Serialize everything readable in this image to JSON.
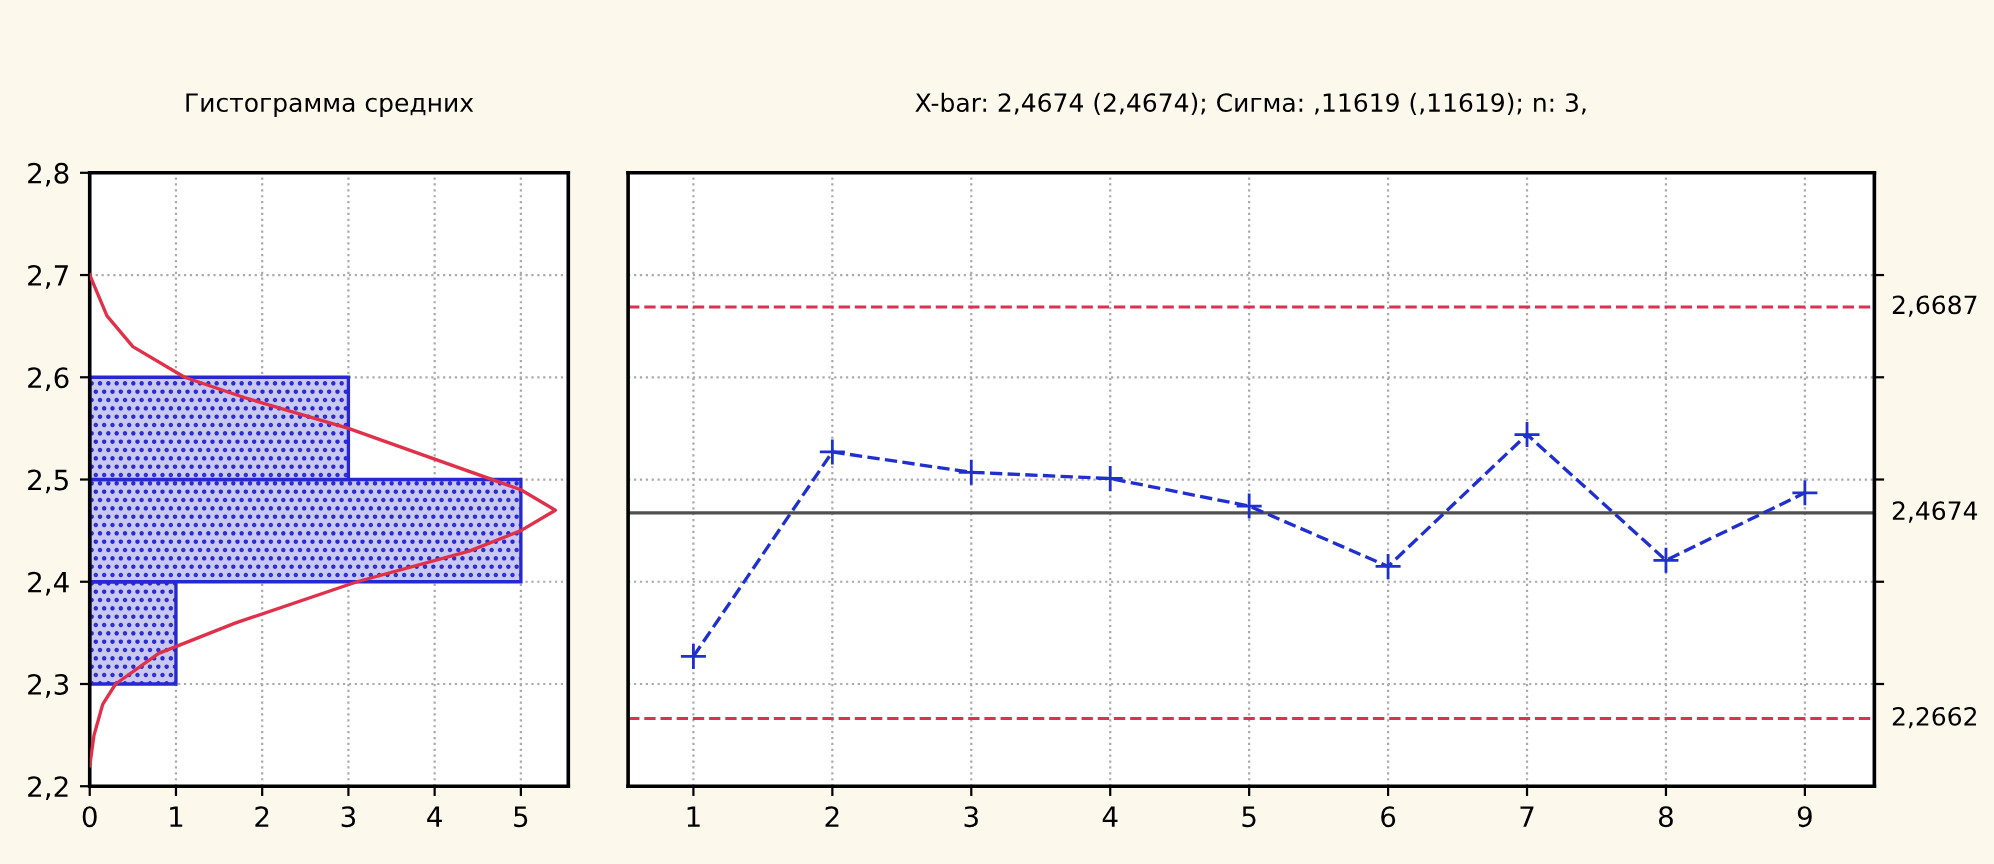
{
  "chart_data": [
    {
      "type": "histogram",
      "title": "Гистограмма средних",
      "orientation": "horizontal",
      "bins": [
        2.3,
        2.4,
        2.5,
        2.6
      ],
      "values": [
        1,
        5,
        3
      ],
      "color": "#2828d0",
      "series": [
        {
          "type": "line",
          "color": "#e0304a",
          "x": [
            2.22,
            2.25,
            2.28,
            2.3,
            2.33,
            2.36,
            2.4,
            2.43,
            2.45,
            2.47,
            2.49,
            2.52,
            2.55,
            2.58,
            2.6,
            2.63,
            2.66,
            2.7
          ],
          "values": [
            0,
            0.05,
            0.15,
            0.3,
            0.8,
            1.7,
            3.1,
            4.4,
            5,
            5.4,
            5,
            4,
            3,
            1.8,
            1.1,
            0.5,
            0.2,
            0
          ]
        }
      ],
      "xlim": [
        0,
        5.55
      ],
      "xticks": [
        0,
        1,
        2,
        3,
        4,
        5
      ],
      "ylim": [
        2.2,
        2.8
      ],
      "yticks": [
        {
          "value": 2.2,
          "label": "2,2"
        },
        {
          "value": 2.3,
          "label": "2,3"
        },
        {
          "value": 2.4,
          "label": "2,4"
        },
        {
          "value": 2.5,
          "label": "2,5"
        },
        {
          "value": 2.6,
          "label": "2,6"
        },
        {
          "value": 2.7,
          "label": "2,7"
        },
        {
          "value": 2.8,
          "label": "2,8"
        }
      ],
      "grid": true
    },
    {
      "type": "line",
      "title": "X-bar: 2,4674 (2,4674); Сигма: ,11619 (,11619); n: 3,",
      "x": [
        1,
        2,
        3,
        4,
        5,
        6,
        7,
        8,
        9
      ],
      "series": [
        {
          "color": "#2030d0",
          "values": [
            2.327,
            2.527,
            2.507,
            2.501,
            2.474,
            2.415,
            2.544,
            2.421,
            2.487
          ]
        }
      ],
      "marker": "cross",
      "line_style": "dashed",
      "xlim": [
        0.53,
        9.5
      ],
      "xticks": [
        1,
        2,
        3,
        4,
        5,
        6,
        7,
        8,
        9
      ],
      "ylim": [
        2.2,
        2.8
      ],
      "yticks": [
        {
          "value": 2.3,
          "label": null
        },
        {
          "value": 2.4,
          "label": null
        },
        {
          "value": 2.5,
          "label": null
        },
        {
          "value": 2.6,
          "label": null
        },
        {
          "value": 2.7,
          "label": null
        }
      ],
      "tick_labels": "x",
      "grid": true,
      "ref_lines": [
        {
          "axis": "y",
          "value": 2.6687,
          "label": "2,6687",
          "color": "#e03050",
          "line_style": "dashed"
        },
        {
          "axis": "y",
          "value": 2.4674,
          "label": "2,4674",
          "color": "#505050",
          "line_style": "solid"
        },
        {
          "axis": "y",
          "value": 2.2662,
          "label": "2,2662",
          "color": "#e03050",
          "line_style": "dashed"
        }
      ]
    }
  ]
}
